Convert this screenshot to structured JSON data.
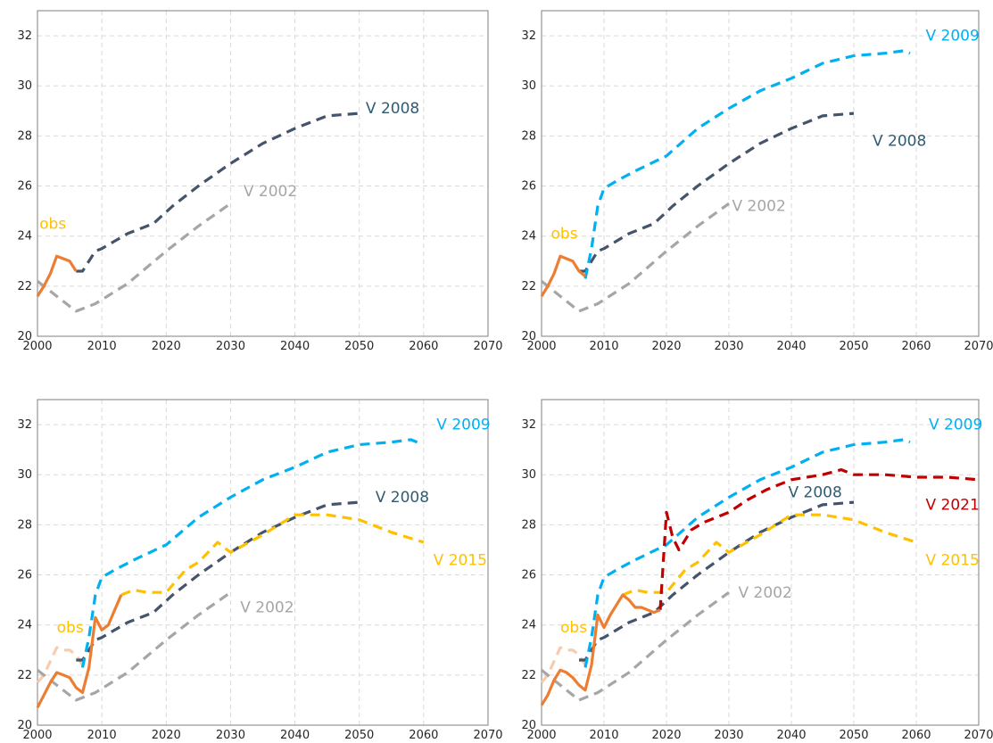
{
  "colors": {
    "obs": "#ED7D31",
    "obs_faded": "#F8CBAD",
    "obs_label": "#FFC000",
    "v2002": "#A6A6A6",
    "v2002_label": "#A6A6A6",
    "v2008": "#44546A",
    "v2008_label": "#2F5C73",
    "v2009": "#00B0F0",
    "v2015": "#FFC000",
    "v2021": "#C00000"
  },
  "chart_data": [
    {
      "type": "line",
      "xlim": [
        2000,
        2070
      ],
      "ylim": [
        20,
        33
      ],
      "xticks": [
        2000,
        2010,
        2020,
        2030,
        2040,
        2050,
        2060,
        2070
      ],
      "yticks": [
        20,
        22,
        24,
        26,
        28,
        30,
        32
      ],
      "grid": true,
      "series": [
        {
          "name": "V 2002",
          "key": "v2002",
          "dashed": true,
          "x": [
            2000,
            2003,
            2006,
            2009,
            2014,
            2020,
            2025,
            2030
          ],
          "y": [
            22.2,
            21.6,
            21.0,
            21.3,
            22.1,
            23.4,
            24.4,
            25.3
          ]
        },
        {
          "name": "V 2008",
          "key": "v2008",
          "dashed": true,
          "x": [
            2006,
            2007,
            2008,
            2009,
            2010,
            2014,
            2018,
            2021,
            2025,
            2030,
            2035,
            2040,
            2045,
            2050
          ],
          "y": [
            22.6,
            22.6,
            23.0,
            23.4,
            23.5,
            24.1,
            24.5,
            25.2,
            26.0,
            26.9,
            27.7,
            28.3,
            28.8,
            28.9
          ]
        },
        {
          "name": "obs",
          "key": "obs",
          "dashed": false,
          "x": [
            2000,
            2001,
            2002,
            2003,
            2004,
            2005,
            2006
          ],
          "y": [
            21.6,
            22.0,
            22.5,
            23.2,
            23.1,
            23.0,
            22.6
          ]
        }
      ],
      "labels": [
        {
          "text": "V 2008",
          "key": "v2008_label",
          "x": 2051,
          "y": 28.9
        },
        {
          "text": "V 2002",
          "key": "v2002_label",
          "x": 2032,
          "y": 25.6
        },
        {
          "text": "obs",
          "key": "obs_label",
          "x": 2000.3,
          "y": 24.3
        }
      ]
    },
    {
      "type": "line",
      "xlim": [
        2000,
        2070
      ],
      "ylim": [
        20,
        33
      ],
      "xticks": [
        2000,
        2010,
        2020,
        2030,
        2040,
        2050,
        2060,
        2070
      ],
      "yticks": [
        20,
        22,
        24,
        26,
        28,
        30,
        32
      ],
      "grid": true,
      "series": [
        {
          "name": "V 2002",
          "key": "v2002",
          "dashed": true,
          "x": [
            2000,
            2003,
            2006,
            2009,
            2014,
            2020,
            2025,
            2030
          ],
          "y": [
            22.2,
            21.6,
            21.0,
            21.3,
            22.1,
            23.4,
            24.4,
            25.3
          ]
        },
        {
          "name": "V 2008",
          "key": "v2008",
          "dashed": true,
          "x": [
            2006,
            2007,
            2008,
            2009,
            2010,
            2014,
            2018,
            2021,
            2025,
            2030,
            2035,
            2040,
            2045,
            2050
          ],
          "y": [
            22.6,
            22.6,
            23.0,
            23.4,
            23.5,
            24.1,
            24.5,
            25.2,
            26.0,
            26.9,
            27.7,
            28.3,
            28.8,
            28.9
          ]
        },
        {
          "name": "V 2009",
          "key": "v2009",
          "dashed": true,
          "x": [
            2007,
            2008,
            2009,
            2010,
            2012,
            2015,
            2020,
            2025,
            2030,
            2035,
            2040,
            2045,
            2050,
            2055,
            2058,
            2059
          ],
          "y": [
            22.3,
            23.5,
            25.2,
            25.9,
            26.2,
            26.6,
            27.2,
            28.3,
            29.1,
            29.8,
            30.3,
            30.9,
            31.2,
            31.3,
            31.4,
            31.3
          ]
        },
        {
          "name": "obs",
          "key": "obs",
          "dashed": false,
          "x": [
            2000,
            2001,
            2002,
            2003,
            2004,
            2005,
            2006,
            2007
          ],
          "y": [
            21.6,
            22.0,
            22.5,
            23.2,
            23.1,
            23.0,
            22.6,
            22.4
          ]
        }
      ],
      "labels": [
        {
          "text": "V 2009",
          "key": "v2009",
          "x": 2061.5,
          "y": 31.8
        },
        {
          "text": "V 2008",
          "key": "v2008_label",
          "x": 2053,
          "y": 27.6
        },
        {
          "text": "V 2002",
          "key": "v2002_label",
          "x": 2030.5,
          "y": 25.0
        },
        {
          "text": "obs",
          "key": "obs_label",
          "x": 2001.5,
          "y": 23.9
        }
      ]
    },
    {
      "type": "line",
      "xlim": [
        2000,
        2070
      ],
      "ylim": [
        20,
        33
      ],
      "xticks": [
        2000,
        2010,
        2020,
        2030,
        2040,
        2050,
        2060,
        2070
      ],
      "yticks": [
        20,
        22,
        24,
        26,
        28,
        30,
        32
      ],
      "grid": true,
      "series": [
        {
          "name": "obs",
          "key": "obs_faded",
          "dashed": true,
          "x": [
            2000,
            2001,
            2003,
            2004,
            2005,
            2006,
            2007
          ],
          "y": [
            21.7,
            22.0,
            23.1,
            23.0,
            23.0,
            22.8,
            22.4
          ]
        },
        {
          "name": "V 2002",
          "key": "v2002",
          "dashed": true,
          "x": [
            2000,
            2003,
            2006,
            2009,
            2014,
            2020,
            2025,
            2030
          ],
          "y": [
            22.2,
            21.6,
            21.0,
            21.3,
            22.1,
            23.4,
            24.4,
            25.3
          ]
        },
        {
          "name": "V 2008",
          "key": "v2008",
          "dashed": true,
          "x": [
            2006,
            2007,
            2008,
            2009,
            2010,
            2014,
            2018,
            2021,
            2025,
            2030,
            2035,
            2040,
            2045,
            2050
          ],
          "y": [
            22.6,
            22.6,
            23.0,
            23.4,
            23.5,
            24.1,
            24.5,
            25.2,
            26.0,
            26.9,
            27.7,
            28.3,
            28.8,
            28.9
          ]
        },
        {
          "name": "V 2009",
          "key": "v2009",
          "dashed": true,
          "x": [
            2007,
            2008,
            2009,
            2010,
            2012,
            2015,
            2020,
            2025,
            2030,
            2035,
            2040,
            2045,
            2050,
            2055,
            2058,
            2059
          ],
          "y": [
            22.3,
            23.5,
            25.2,
            25.9,
            26.2,
            26.6,
            27.2,
            28.3,
            29.1,
            29.8,
            30.3,
            30.9,
            31.2,
            31.3,
            31.4,
            31.3
          ]
        },
        {
          "name": "V 2015",
          "key": "v2015",
          "dashed": true,
          "x": [
            2013,
            2015,
            2017,
            2020,
            2023,
            2025,
            2028,
            2030,
            2035,
            2040,
            2045,
            2050,
            2055,
            2060
          ],
          "y": [
            25.2,
            25.4,
            25.3,
            25.3,
            26.2,
            26.5,
            27.3,
            26.9,
            27.6,
            28.4,
            28.4,
            28.2,
            27.7,
            27.3
          ]
        },
        {
          "name": "obs",
          "key": "obs",
          "dashed": false,
          "x": [
            2000,
            2001,
            2002,
            2003,
            2004,
            2005,
            2006,
            2007,
            2008,
            2009,
            2010,
            2011,
            2012,
            2013
          ],
          "y": [
            20.7,
            21.2,
            21.7,
            22.1,
            22.0,
            21.9,
            21.5,
            21.3,
            22.3,
            24.3,
            23.8,
            24.0,
            24.6,
            25.2
          ]
        }
      ],
      "labels": [
        {
          "text": "V 2009",
          "key": "v2009",
          "x": 2062,
          "y": 31.8
        },
        {
          "text": "V 2008",
          "key": "v2008_label",
          "x": 2052.5,
          "y": 28.9
        },
        {
          "text": "V 2015",
          "key": "v2015",
          "x": 2061.5,
          "y": 26.4
        },
        {
          "text": "V 2002",
          "key": "v2002_label",
          "x": 2031.5,
          "y": 24.5
        },
        {
          "text": "obs",
          "key": "obs_label",
          "x": 2003,
          "y": 23.7
        }
      ]
    },
    {
      "type": "line",
      "xlim": [
        2000,
        2070
      ],
      "ylim": [
        20,
        33
      ],
      "xticks": [
        2000,
        2010,
        2020,
        2030,
        2040,
        2050,
        2060,
        2070
      ],
      "yticks": [
        20,
        22,
        24,
        26,
        28,
        30,
        32
      ],
      "grid": true,
      "series": [
        {
          "name": "obs",
          "key": "obs_faded",
          "dashed": true,
          "x": [
            2000,
            2001,
            2003,
            2004,
            2005,
            2006,
            2007
          ],
          "y": [
            21.7,
            22.0,
            23.1,
            23.0,
            23.0,
            22.8,
            22.4
          ]
        },
        {
          "name": "V 2002",
          "key": "v2002",
          "dashed": true,
          "x": [
            2000,
            2003,
            2006,
            2009,
            2014,
            2020,
            2025,
            2030
          ],
          "y": [
            22.2,
            21.6,
            21.0,
            21.3,
            22.1,
            23.4,
            24.4,
            25.3
          ]
        },
        {
          "name": "V 2008",
          "key": "v2008",
          "dashed": true,
          "x": [
            2006,
            2007,
            2008,
            2009,
            2010,
            2014,
            2018,
            2021,
            2025,
            2030,
            2035,
            2040,
            2045,
            2050
          ],
          "y": [
            22.6,
            22.6,
            23.0,
            23.4,
            23.5,
            24.1,
            24.5,
            25.2,
            26.0,
            26.9,
            27.7,
            28.3,
            28.8,
            28.9
          ]
        },
        {
          "name": "V 2009",
          "key": "v2009",
          "dashed": true,
          "x": [
            2007,
            2008,
            2009,
            2010,
            2012,
            2015,
            2020,
            2025,
            2030,
            2035,
            2040,
            2045,
            2050,
            2055,
            2058,
            2059
          ],
          "y": [
            22.3,
            23.5,
            25.2,
            25.9,
            26.2,
            26.6,
            27.2,
            28.3,
            29.1,
            29.8,
            30.3,
            30.9,
            31.2,
            31.3,
            31.4,
            31.3
          ]
        },
        {
          "name": "V 2015",
          "key": "v2015",
          "dashed": true,
          "x": [
            2013,
            2015,
            2017,
            2020,
            2023,
            2025,
            2028,
            2030,
            2035,
            2040,
            2045,
            2050,
            2055,
            2060
          ],
          "y": [
            25.2,
            25.4,
            25.3,
            25.3,
            26.2,
            26.5,
            27.3,
            26.9,
            27.6,
            28.4,
            28.4,
            28.2,
            27.7,
            27.3
          ]
        },
        {
          "name": "V 2021",
          "key": "v2021",
          "dashed": true,
          "x": [
            2019,
            2020,
            2021,
            2022,
            2024,
            2026,
            2028,
            2030,
            2033,
            2036,
            2040,
            2045,
            2048,
            2050,
            2055,
            2060,
            2065,
            2070
          ],
          "y": [
            24.6,
            28.5,
            27.5,
            27.0,
            27.8,
            28.1,
            28.3,
            28.5,
            29.0,
            29.4,
            29.8,
            30.0,
            30.2,
            30.0,
            30.0,
            29.9,
            29.9,
            29.8
          ]
        },
        {
          "name": "obs",
          "key": "obs",
          "dashed": false,
          "x": [
            2000,
            2001,
            2002,
            2003,
            2004,
            2005,
            2006,
            2007,
            2008,
            2009,
            2010,
            2011,
            2012,
            2013,
            2014,
            2015,
            2016,
            2017,
            2018,
            2019
          ],
          "y": [
            20.8,
            21.2,
            21.8,
            22.2,
            22.1,
            21.9,
            21.6,
            21.4,
            22.4,
            24.4,
            23.9,
            24.4,
            24.8,
            25.2,
            25.0,
            24.7,
            24.7,
            24.6,
            24.5,
            24.6
          ]
        }
      ],
      "labels": [
        {
          "text": "V 2009",
          "key": "v2009",
          "x": 2062,
          "y": 31.8
        },
        {
          "text": "V 2008",
          "key": "v2008_label",
          "x": 2039.5,
          "y": 29.1
        },
        {
          "text": "V 2021",
          "key": "v2021",
          "x": 2061.5,
          "y": 28.6
        },
        {
          "text": "V 2015",
          "key": "v2015",
          "x": 2061.5,
          "y": 26.4
        },
        {
          "text": "V 2002",
          "key": "v2002_label",
          "x": 2031.5,
          "y": 25.1
        },
        {
          "text": "obs",
          "key": "obs_label",
          "x": 2003,
          "y": 23.7
        }
      ]
    }
  ]
}
